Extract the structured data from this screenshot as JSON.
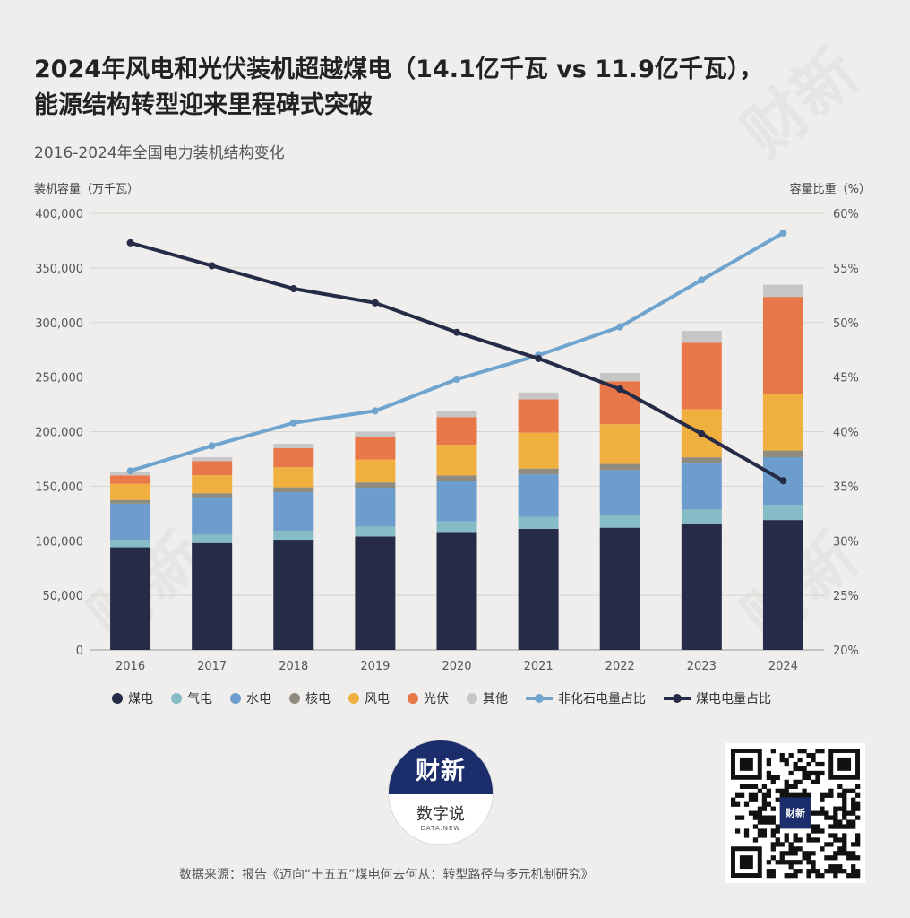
{
  "title_line1": "2024年风电和光伏装机超越煤电（14.1亿千瓦 vs 11.9亿千瓦），",
  "title_line2": "能源结构转型迎来里程碑式突破",
  "subtitle": "2016-2024年全国电力装机结构变化",
  "left_axis_title": "装机容量（万千瓦）",
  "right_axis_title": "容量比重（%）",
  "source": "数据来源：报告《迈向“十五五”煤电何去何从：转型路径与多元机制研究》",
  "logo": {
    "brand": "财新",
    "tagline": "数字说",
    "small": "DATA.NEW"
  },
  "qr_brand": "财新",
  "watermark_text": "财新",
  "chart_data": {
    "type": "bar",
    "stacked": true,
    "categories": [
      "2016",
      "2017",
      "2018",
      "2019",
      "2020",
      "2021",
      "2022",
      "2023",
      "2024"
    ],
    "series": [
      {
        "name": "煤电",
        "color": "#262b47",
        "values": [
          94000,
          98000,
          101000,
          104000,
          108000,
          111000,
          112000,
          116000,
          119000
        ]
      },
      {
        "name": "气电",
        "color": "#86bcc5",
        "values": [
          7000,
          7600,
          8300,
          9000,
          9800,
          10800,
          11500,
          12600,
          14000
        ]
      },
      {
        "name": "水电",
        "color": "#6d9dcd",
        "values": [
          33000,
          34400,
          35200,
          35600,
          37000,
          39100,
          41300,
          42200,
          43600
        ]
      },
      {
        "name": "核电",
        "color": "#8f8c7f",
        "values": [
          3400,
          3600,
          4500,
          4900,
          5000,
          5300,
          5600,
          5700,
          6100
        ]
      },
      {
        "name": "风电",
        "color": "#f0b040",
        "values": [
          14800,
          16400,
          18400,
          21000,
          28200,
          32800,
          36500,
          44100,
          52100
        ]
      },
      {
        "name": "光伏",
        "color": "#e8784a",
        "values": [
          7700,
          13000,
          17400,
          20500,
          25300,
          30700,
          39300,
          60900,
          88700
        ]
      },
      {
        "name": "其他",
        "color": "#c6c6c6",
        "values": [
          3100,
          3500,
          4000,
          4600,
          5300,
          6200,
          7600,
          10800,
          11200
        ]
      }
    ],
    "lines": [
      {
        "name": "非化石电量占比",
        "axis": "right",
        "color": "#6fa4cf",
        "values": [
          36.4,
          38.7,
          40.8,
          41.9,
          44.8,
          47.0,
          49.6,
          53.9,
          58.2
        ]
      },
      {
        "name": "煤电电量占比",
        "axis": "right",
        "color": "#262b47",
        "values": [
          57.3,
          55.2,
          53.1,
          51.8,
          49.1,
          46.7,
          43.9,
          39.8,
          35.5
        ]
      }
    ],
    "ylim_left": [
      0,
      400000
    ],
    "yticks_left": [
      "0",
      "50,000",
      "100,000",
      "150,000",
      "200,000",
      "250,000",
      "300,000",
      "350,000",
      "400,000"
    ],
    "ylim_right": [
      20,
      60
    ],
    "yticks_right": [
      "20%",
      "25%",
      "30%",
      "35%",
      "40%",
      "45%",
      "50%",
      "55%",
      "60%"
    ],
    "grid": true,
    "legend_position": "bottom"
  }
}
